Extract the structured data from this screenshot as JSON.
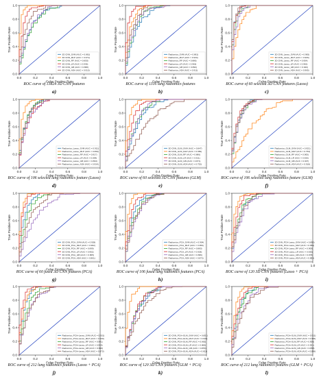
{
  "chart_data": [
    {
      "type": "line",
      "title": "",
      "xlabel": "False Positive Rate",
      "ylabel": "True Positive Rate",
      "xlim": [
        0,
        1
      ],
      "ylim": [
        0,
        1
      ],
      "xticks": [
        "0.0",
        "0.2",
        "0.4",
        "0.6",
        "0.8",
        "1.0"
      ],
      "yticks": [
        "0.0",
        "0.2",
        "0.4",
        "0.6",
        "0.8",
        "1.0"
      ],
      "caption": "ROC curve of 13824 3D CNN features",
      "letter": "a)",
      "series": [
        {
          "name": "3D CNN_SVM (AUC = 0.861)",
          "color": "#1f77b4",
          "auc": 0.861
        },
        {
          "name": "3D CNN_MLP (AUC = 0.974)",
          "color": "#ff7f0e",
          "auc": 0.974
        },
        {
          "name": "3D CNN_RF (AUC = 0.850)",
          "color": "#2ca02c",
          "auc": 0.85
        },
        {
          "name": "3D CNN_LR (AUC = 0.943)",
          "color": "#d62728",
          "auc": 0.943
        },
        {
          "name": "3D CNN_GB (AUC = 0.868)",
          "color": "#9467bd",
          "auc": 0.868
        },
        {
          "name": "3D CNN_ADA (AUC = 0.913)",
          "color": "#8c564b",
          "auc": 0.913
        }
      ]
    },
    {
      "type": "line",
      "title": "",
      "xlabel": "False Positive Rate",
      "ylabel": "True Positive Rate",
      "xlim": [
        0,
        1
      ],
      "ylim": [
        0,
        1
      ],
      "xticks": [
        "0.0",
        "0.2",
        "0.4",
        "0.6",
        "0.8",
        "1.0"
      ],
      "yticks": [
        "0.0",
        "0.2",
        "0.4",
        "0.6",
        "0.8",
        "1.0"
      ],
      "caption": "ROC curve of 1316 lung radiomics features",
      "letter": "b)",
      "series": [
        {
          "name": "Radiomics_SVM (AUC = 0.861)",
          "color": "#1f77b4",
          "auc": 0.861
        },
        {
          "name": "Radiomics_MLP (AUC = 0.934)",
          "color": "#ff7f0e",
          "auc": 0.934
        },
        {
          "name": "Radiomics_RF (AUC = 0.886)",
          "color": "#2ca02c",
          "auc": 0.886
        },
        {
          "name": "Radiomics_LR (AUC = 0.963)",
          "color": "#d62728",
          "auc": 0.963
        },
        {
          "name": "Radiomics_GB (AUC = 0.890)",
          "color": "#9467bd",
          "auc": 0.89
        },
        {
          "name": "Radiomics_ADA (AUC = 0.911)",
          "color": "#8c564b",
          "auc": 0.911
        }
      ]
    },
    {
      "type": "line",
      "title": "",
      "xlabel": "False Positive Rate",
      "ylabel": "True Positive Rate",
      "xlim": [
        0,
        1
      ],
      "ylim": [
        0,
        1
      ],
      "xticks": [
        "0.0",
        "0.2",
        "0.4",
        "0.6",
        "0.8",
        "1.0"
      ],
      "yticks": [
        "0.0",
        "0.2",
        "0.4",
        "0.6",
        "0.8",
        "1.0"
      ],
      "caption": "ROC curve of 60 selected 3D CNN features (Lasso)",
      "letter": "c)",
      "series": [
        {
          "name": "3D CNN_Lasso_SVM (AUC = 0.965)",
          "color": "#1f77b4",
          "auc": 0.965
        },
        {
          "name": "3D CNN_Lasso_MLP (AUC = 0.906)",
          "color": "#ff7f0e",
          "auc": 0.906
        },
        {
          "name": "3D CNN_Lasso_RF (AUC = 0.954)",
          "color": "#2ca02c",
          "auc": 0.954
        },
        {
          "name": "3D CNN_Lasso_LR (AUC = 0.962)",
          "color": "#d62728",
          "auc": 0.962
        },
        {
          "name": "3D CNN_Lasso_GB (AUC = 0.940)",
          "color": "#9467bd",
          "auc": 0.94
        },
        {
          "name": "3D CNN_Lasso_ADA (AUC = 0.965)",
          "color": "#8c564b",
          "auc": 0.965
        }
      ]
    },
    {
      "type": "line",
      "title": "",
      "xlabel": "False Positive Rate",
      "ylabel": "True Positive Rate",
      "xlim": [
        0,
        1
      ],
      "ylim": [
        0,
        1
      ],
      "xticks": [
        "0.0",
        "0.2",
        "0.4",
        "0.6",
        "0.8",
        "1.0"
      ],
      "yticks": [
        "0.0",
        "0.2",
        "0.4",
        "0.6",
        "0.8",
        "1.0"
      ],
      "caption": "ROC curve of 106 selected lung radiomics feature (Lasso)",
      "letter": "d)",
      "series": [
        {
          "name": "Radiomics_Lasso_SVM (AUC = 0.911)",
          "color": "#1f77b4",
          "auc": 0.911
        },
        {
          "name": "Radiomics_Lasso_MLP (AUC = 0.959)",
          "color": "#ff7f0e",
          "auc": 0.959
        },
        {
          "name": "Radiomics_Lasso_RF (AUC = 0.917)",
          "color": "#2ca02c",
          "auc": 0.917
        },
        {
          "name": "Radiomics_Lasso_LR (AUC = 0.894)",
          "color": "#d62728",
          "auc": 0.894
        },
        {
          "name": "Radiomics_Lasso_GB (AUC = 0.893)",
          "color": "#9467bd",
          "auc": 0.893
        },
        {
          "name": "Radiomics_Lasso_ADA (AUC = 0.914)",
          "color": "#8c564b",
          "auc": 0.914
        }
      ]
    },
    {
      "type": "line",
      "title": "",
      "xlabel": "False Positive Rate",
      "ylabel": "True Positive Rate",
      "xlim": [
        0,
        1
      ],
      "ylim": [
        0,
        1
      ],
      "xticks": [
        "0.0",
        "0.2",
        "0.4",
        "0.6",
        "0.8",
        "1.0"
      ],
      "yticks": [
        "0.0",
        "0.2",
        "0.4",
        "0.6",
        "0.8",
        "1.0"
      ],
      "caption": "ROC curve of 60 selected 3D CNN features (GLM)",
      "letter": "e)",
      "series": [
        {
          "name": "3D CNN_GLM_SVM (AUC = 0.847)",
          "color": "#1f77b4",
          "auc": 0.847
        },
        {
          "name": "3D CNN_GLM_MLP (AUC = 0.950)",
          "color": "#ff7f0e",
          "auc": 0.95
        },
        {
          "name": "3D CNN_GLM_RF (AUC = 0.866)",
          "color": "#2ca02c",
          "auc": 0.866
        },
        {
          "name": "3D CNN_GLM_LR (AUC = 0.911)",
          "color": "#d62728",
          "auc": 0.911
        },
        {
          "name": "3D CNN_GLM_GB (AUC = 0.871)",
          "color": "#9467bd",
          "auc": 0.871
        },
        {
          "name": "3D CNN_GLM_ADA (AUC = 0.752)",
          "color": "#8c564b",
          "auc": 0.752
        }
      ]
    },
    {
      "type": "line",
      "title": "",
      "xlabel": "False Positive Rate",
      "ylabel": "True Positive Rate",
      "xlim": [
        0,
        1
      ],
      "ylim": [
        0,
        1
      ],
      "xticks": [
        "0.0",
        "0.2",
        "0.4",
        "0.6",
        "0.8",
        "1.0"
      ],
      "yticks": [
        "0.0",
        "0.2",
        "0.4",
        "0.6",
        "0.8",
        "1.0"
      ],
      "caption": "ROC curve of 106 selected lung radiomics feature (GLM)",
      "letter": "f)",
      "series": [
        {
          "name": "Radiomics_GLM_SVM (AUC = 0.921)",
          "color": "#1f77b4",
          "auc": 0.921
        },
        {
          "name": "Radiomics_GLM_MLP (AUC = 0.753)",
          "color": "#ff7f0e",
          "auc": 0.753
        },
        {
          "name": "Radiomics_GLM_RF (AUC = 0.905)",
          "color": "#2ca02c",
          "auc": 0.905
        },
        {
          "name": "Radiomics_GLM_LR (AUC = 0.930)",
          "color": "#d62728",
          "auc": 0.93
        },
        {
          "name": "Radiomics_GLM_GB (AUC = 0.907)",
          "color": "#9467bd",
          "auc": 0.907
        },
        {
          "name": "Radiomics_GLM_ADA (AUC = 0.918)",
          "color": "#8c564b",
          "auc": 0.918
        }
      ]
    },
    {
      "type": "line",
      "title": "",
      "xlabel": "False Positive Rate",
      "ylabel": "True Positive Rate",
      "xlim": [
        0,
        1
      ],
      "ylim": [
        0,
        1
      ],
      "xticks": [
        "0.0",
        "0.2",
        "0.4",
        "0.6",
        "0.8",
        "1.0"
      ],
      "yticks": [
        "0.0",
        "0.2",
        "0.4",
        "0.6",
        "0.8",
        "1.0"
      ],
      "caption": "ROC curve of 60 fused 3D CNN features (PCA)",
      "letter": "g)",
      "series": [
        {
          "name": "3D CNN_PCA_SVM (AUC = 0.928)",
          "color": "#1f77b4",
          "auc": 0.928
        },
        {
          "name": "3D CNN_PCA_MLP (AUC = 0.962)",
          "color": "#ff7f0e",
          "auc": 0.962
        },
        {
          "name": "3D CNN_PCA_RF (AUC = 0.899)",
          "color": "#2ca02c",
          "auc": 0.899
        },
        {
          "name": "3D CNN_PCA_LR (AUC = 0.952)",
          "color": "#d62728",
          "auc": 0.952
        },
        {
          "name": "3D CNN_PCA_GB (AUC = 0.805)",
          "color": "#9467bd",
          "auc": 0.805
        },
        {
          "name": "3D CNN_PCA_ADA (AUC = 0.861)",
          "color": "#8c564b",
          "auc": 0.861
        }
      ]
    },
    {
      "type": "line",
      "title": "",
      "xlabel": "False Positive Rate",
      "ylabel": "True Positive Rate",
      "xlim": [
        0,
        1
      ],
      "ylim": [
        0,
        1
      ],
      "xticks": [
        "0.0",
        "0.2",
        "0.4",
        "0.6",
        "0.8",
        "1.0"
      ],
      "yticks": [
        "0.0",
        "0.2",
        "0.4",
        "0.6",
        "0.8",
        "1.0"
      ],
      "caption": "ROC curve of 106 fused lung radiomics features (PCA)",
      "letter": "h)",
      "series": [
        {
          "name": "Radiomics_PCA_SVM (AUC = 0.904)",
          "color": "#1f77b4",
          "auc": 0.904
        },
        {
          "name": "Radiomics_PCA_MLP (AUC = 0.959)",
          "color": "#ff7f0e",
          "auc": 0.959
        },
        {
          "name": "Radiomics_PCA_RF (AUC = 0.883)",
          "color": "#2ca02c",
          "auc": 0.883
        },
        {
          "name": "Radiomics_PCA_LR (AUC = 0.928)",
          "color": "#d62728",
          "auc": 0.928
        },
        {
          "name": "Radiomics_PCA_GB (AUC = 0.866)",
          "color": "#9467bd",
          "auc": 0.866
        },
        {
          "name": "Radiomics_PCA_ADA (AUC = 0.872)",
          "color": "#8c564b",
          "auc": 0.872
        }
      ]
    },
    {
      "type": "line",
      "title": "",
      "xlabel": "False Positive Rate",
      "ylabel": "True Positive Rate",
      "xlim": [
        0,
        1
      ],
      "ylim": [
        0,
        1
      ],
      "xticks": [
        "0.0",
        "0.2",
        "0.4",
        "0.6",
        "0.8",
        "1.0"
      ],
      "yticks": [
        "0.0",
        "0.2",
        "0.4",
        "0.6",
        "0.8",
        "1.0"
      ],
      "caption": "ROC curve of 120 3D CNN features (Lasso + PCA)",
      "letter": "i)",
      "series": [
        {
          "name": "3D CNN_PCA-Lasso_SVM (AUC = 0.895)",
          "color": "#1f77b4",
          "auc": 0.895
        },
        {
          "name": "3D CNN_PCA-Lasso_MLP (AUC = 0.956)",
          "color": "#ff7f0e",
          "auc": 0.956
        },
        {
          "name": "3D CNN_PCA-Lasso_RF (AUC = 0.909)",
          "color": "#2ca02c",
          "auc": 0.909
        },
        {
          "name": "3D CNN_PCA-Lasso_LR (AUC = 0.935)",
          "color": "#d62728",
          "auc": 0.935
        },
        {
          "name": "3D CNN_PCA-Lasso_GB (AUC = 0.876)",
          "color": "#9467bd",
          "auc": 0.876
        },
        {
          "name": "3D CNN_PCA-Lasso_ADA (AUC = 0.893)",
          "color": "#8c564b",
          "auc": 0.893
        }
      ]
    },
    {
      "type": "line",
      "title": "",
      "xlabel": "False Positive Rate",
      "ylabel": "True Positive Rate",
      "xlim": [
        0,
        1
      ],
      "ylim": [
        0,
        1
      ],
      "xticks": [
        "0.0",
        "0.2",
        "0.4",
        "0.6",
        "0.8",
        "1.0"
      ],
      "yticks": [
        "0.0",
        "0.2",
        "0.4",
        "0.6",
        "0.8",
        "1.0"
      ],
      "caption": "ROC curve of 212 lung radiomics features (Lasso + PCA)",
      "letter": "j)",
      "series": [
        {
          "name": "Radiomics_PCA+Lasso_SVM (AUC = 0.931)",
          "color": "#1f77b4",
          "auc": 0.931
        },
        {
          "name": "Radiomics_PCA+Lasso_MLP (AUC = 0.940)",
          "color": "#ff7f0e",
          "auc": 0.94
        },
        {
          "name": "Radiomics_PCA+Lasso_RF (AUC = 0.901)",
          "color": "#2ca02c",
          "auc": 0.901
        },
        {
          "name": "Radiomics_PCA+Lasso_LR (AUC = 0.955)",
          "color": "#d62728",
          "auc": 0.955
        },
        {
          "name": "Radiomics_PCA+Lasso_GB (AUC = 0.868)",
          "color": "#9467bd",
          "auc": 0.868
        },
        {
          "name": "Radiomics_PCA+Lasso_ADA (AUC = 0.872)",
          "color": "#8c564b",
          "auc": 0.872
        }
      ]
    },
    {
      "type": "line",
      "title": "",
      "xlabel": "False Positive Rate",
      "ylabel": "True Positive Rate",
      "xlim": [
        0,
        1
      ],
      "ylim": [
        0,
        1
      ],
      "xticks": [
        "0.0",
        "0.2",
        "0.4",
        "0.6",
        "0.8",
        "1.0"
      ],
      "yticks": [
        "0.0",
        "0.2",
        "0.4",
        "0.6",
        "0.8",
        "1.0"
      ],
      "caption": "ROC curve of 120 3D CNN features (GLM + PCA)",
      "letter": "k)",
      "series": [
        {
          "name": "3D CNN_PCA+GLM_SVM (AUC = 0.851)",
          "color": "#1f77b4",
          "auc": 0.851
        },
        {
          "name": "3D CNN_PCA+GLM_MLP (AUC = 0.949)",
          "color": "#ff7f0e",
          "auc": 0.949
        },
        {
          "name": "3D CNN_PCA+GLM_RF (AUC = 0.863)",
          "color": "#2ca02c",
          "auc": 0.863
        },
        {
          "name": "3D CNN_PCA+GLM_LR (AUC = 0.868)",
          "color": "#d62728",
          "auc": 0.868
        },
        {
          "name": "3D CNN_PCA+GLM_GB (AUC = 0.853)",
          "color": "#9467bd",
          "auc": 0.853
        },
        {
          "name": "3D CNN_PCA+GLM_ADA (AUC = 0.811)",
          "color": "#8c564b",
          "auc": 0.811
        }
      ]
    },
    {
      "type": "line",
      "title": "",
      "xlabel": "False Positive Rate",
      "ylabel": "True Positive Rate",
      "xlim": [
        0,
        1
      ],
      "ylim": [
        0,
        1
      ],
      "xticks": [
        "0.0",
        "0.2",
        "0.4",
        "0.6",
        "0.8",
        "1.0"
      ],
      "yticks": [
        "0.0",
        "0.2",
        "0.4",
        "0.6",
        "0.8",
        "1.0"
      ],
      "caption": "ROC curve of 212 lung radiomics features (GLM + PCA)",
      "letter": "l)",
      "series": [
        {
          "name": "Radiomics_PCA+GLM_SVM (AUC = 0.911)",
          "color": "#1f77b4",
          "auc": 0.911
        },
        {
          "name": "Radiomics_PCA+GLM_MLP (AUC = 0.946)",
          "color": "#ff7f0e",
          "auc": 0.946
        },
        {
          "name": "Radiomics_PCA+GLM_RF (AUC = 0.900)",
          "color": "#2ca02c",
          "auc": 0.9
        },
        {
          "name": "Radiomics_PCA+GLM_LR (AUC = 0.921)",
          "color": "#d62728",
          "auc": 0.921
        },
        {
          "name": "Radiomics_PCA+GLM_GB (AUC = 0.868)",
          "color": "#9467bd",
          "auc": 0.868
        },
        {
          "name": "Radiomics_PCA+GLM_ADA (AUC = 0.856)",
          "color": "#8c564b",
          "auc": 0.856
        }
      ]
    }
  ]
}
